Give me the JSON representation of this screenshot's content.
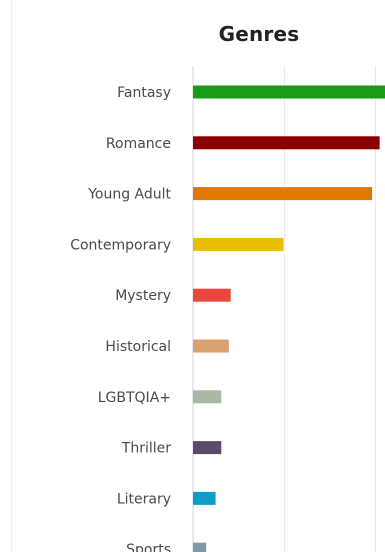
{
  "chart_data": {
    "type": "bar",
    "orientation": "horizontal",
    "title": "Genres",
    "xlabel": "",
    "ylabel": "",
    "grid": true,
    "categories": [
      "Fantasy",
      "Romance",
      "Young Adult",
      "Contemporary",
      "Mystery",
      "Historical",
      "LGBTQIA+",
      "Thriller",
      "Literary",
      "Sports"
    ],
    "values": [
      102,
      99,
      95,
      48,
      20,
      19,
      15,
      15,
      12,
      7
    ],
    "colors": [
      "#1a9c1a",
      "#8b0000",
      "#e07900",
      "#e6c000",
      "#e8473c",
      "#d9a070",
      "#a8b8a4",
      "#5b4a6b",
      "#0e9dc8",
      "#7f98a6"
    ],
    "xlim": [
      0,
      102
    ]
  }
}
